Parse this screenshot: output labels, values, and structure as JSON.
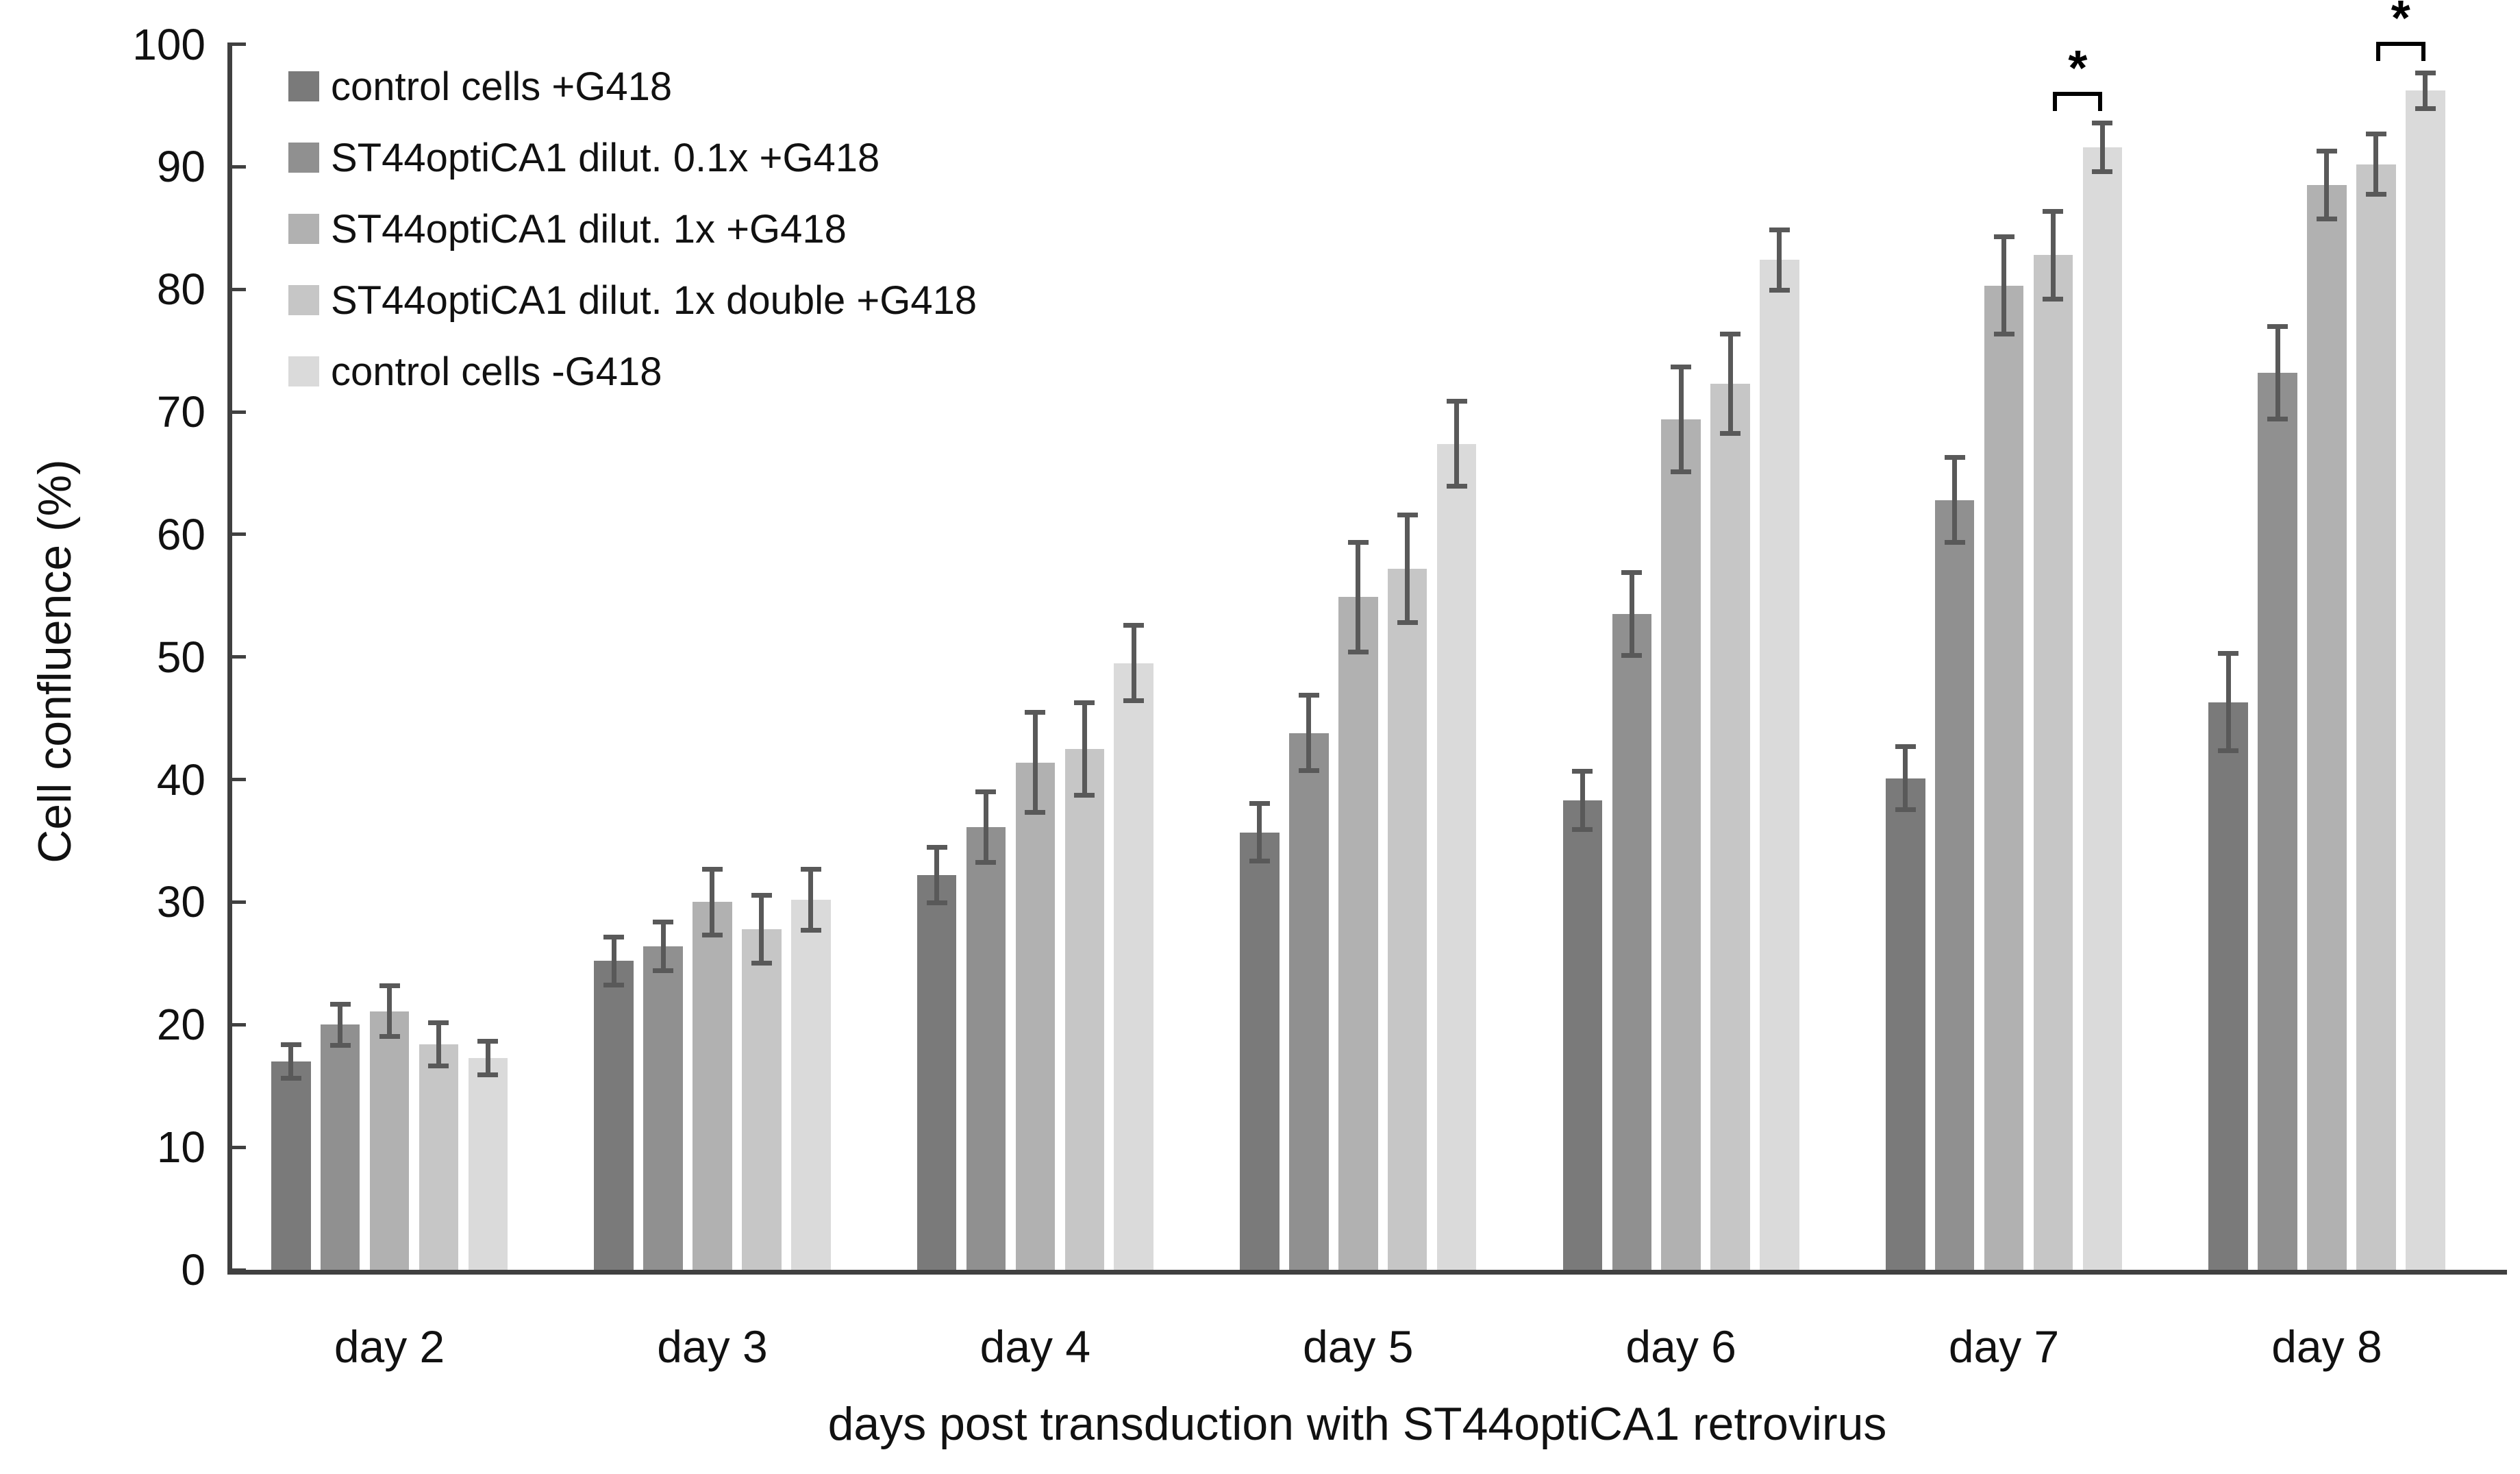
{
  "chart_data": {
    "type": "bar",
    "title": "",
    "ylabel": "Cell confluence (%)",
    "xlabel": "days post transduction with ST44optiCA1 retrovirus",
    "ylim": [
      0,
      100
    ],
    "ytick_step": 10,
    "grid": false,
    "legend_position": "top-left-inside",
    "error_bars": true,
    "error_bar_color": "#595959",
    "axis_color": "#404040",
    "text_color": "#111111",
    "categories": [
      "day 2",
      "day 3",
      "day 4",
      "day 5",
      "day 6",
      "day 7",
      "day 8"
    ],
    "series": [
      {
        "name": "control cells +G418",
        "color": "#7a7a7a",
        "values": [
          17.0,
          25.2,
          32.2,
          35.7,
          38.3,
          40.1,
          46.3
        ],
        "errors": [
          1.4,
          2.0,
          2.3,
          2.4,
          2.4,
          2.6,
          4.0
        ]
      },
      {
        "name": "ST44optiCA1 dilut. 0.1x +G418",
        "color": "#909090",
        "values": [
          20.0,
          26.4,
          36.1,
          43.8,
          53.5,
          62.8,
          73.2
        ],
        "errors": [
          1.7,
          2.0,
          2.9,
          3.1,
          3.4,
          3.5,
          3.8
        ]
      },
      {
        "name": "ST44optiCA1 dilut. 1x +G418",
        "color": "#b1b1b1",
        "values": [
          21.1,
          30.0,
          41.4,
          54.9,
          69.4,
          80.3,
          88.5
        ],
        "errors": [
          2.1,
          2.7,
          4.1,
          4.5,
          4.3,
          4.0,
          2.8
        ]
      },
      {
        "name": "ST44optiCA1 dilut. 1x double +G418",
        "color": "#c6c6c6",
        "values": [
          18.4,
          27.8,
          42.5,
          57.2,
          72.3,
          82.8,
          90.2
        ],
        "errors": [
          1.8,
          2.8,
          3.8,
          4.4,
          4.1,
          3.6,
          2.5
        ]
      },
      {
        "name": "control cells -G418",
        "color": "#dadada",
        "values": [
          17.3,
          30.2,
          49.5,
          67.4,
          82.4,
          91.6,
          96.2
        ],
        "errors": [
          1.4,
          2.5,
          3.1,
          3.5,
          2.5,
          2.0,
          1.5
        ]
      }
    ],
    "significance": [
      {
        "category": "day 7",
        "series_pair": [
          3,
          4
        ],
        "label": "*"
      },
      {
        "category": "day 8",
        "series_pair": [
          3,
          4
        ],
        "label": "*"
      }
    ]
  }
}
